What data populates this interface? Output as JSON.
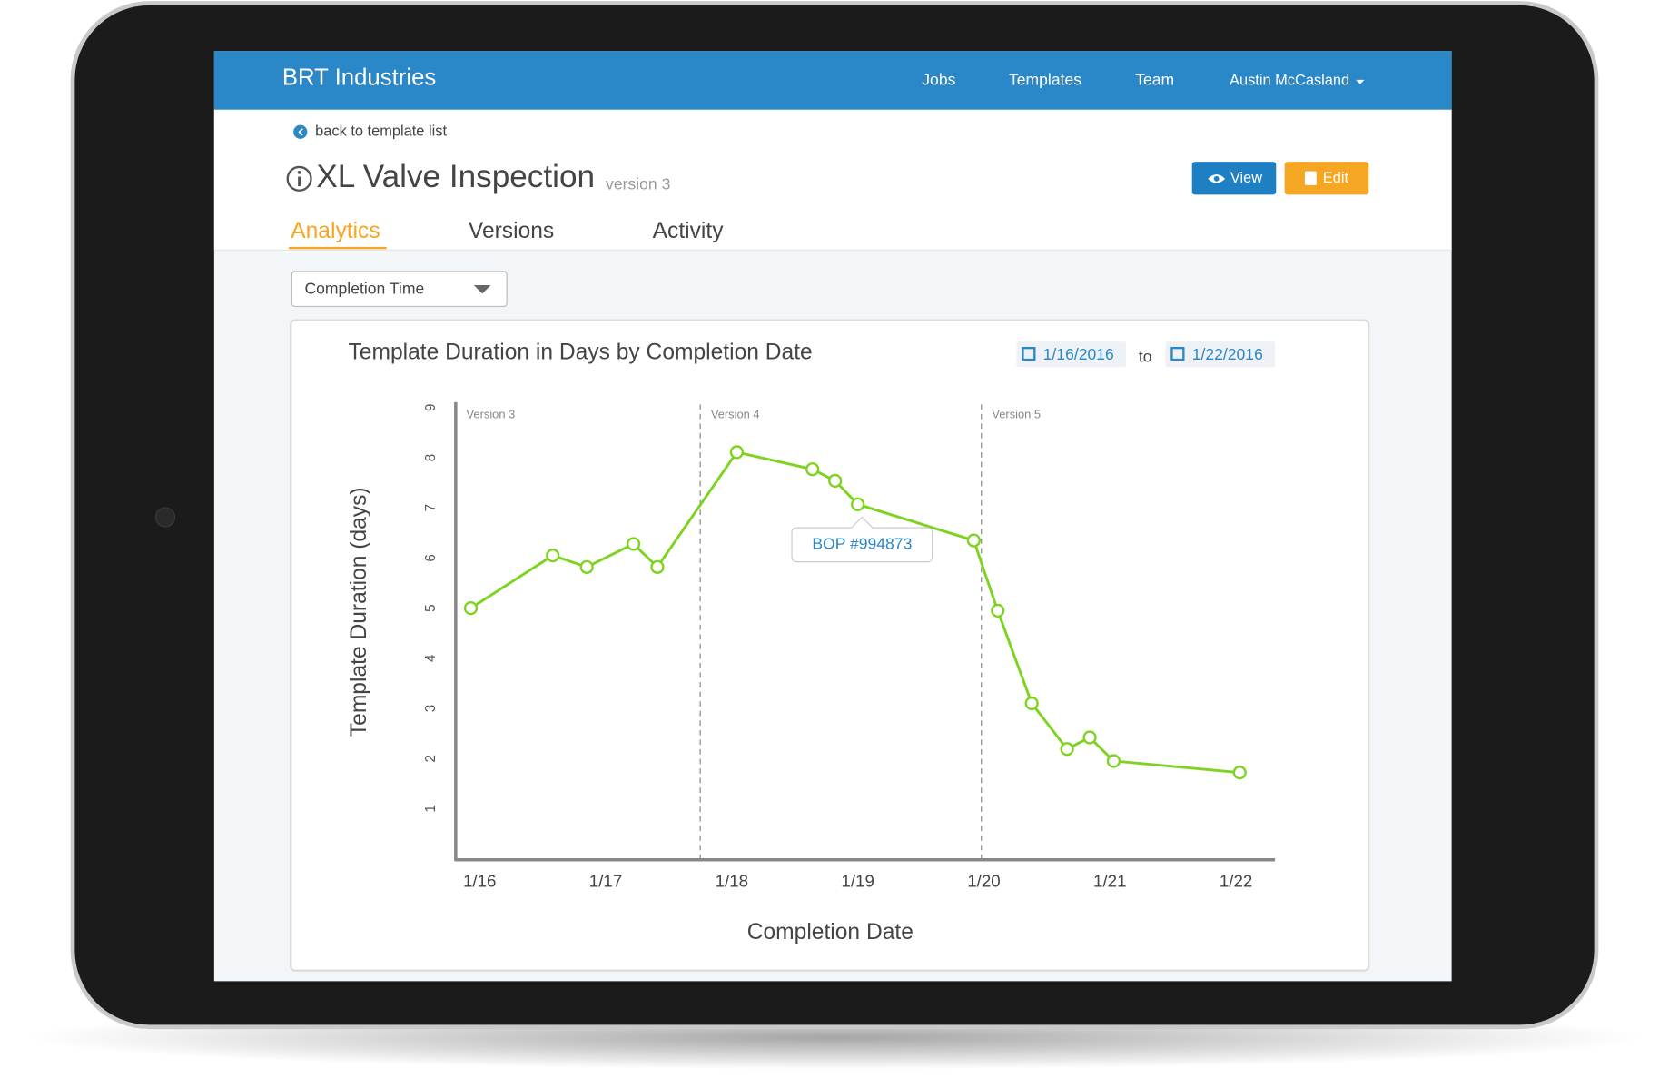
{
  "header": {
    "brand": "BRT Industries",
    "nav": [
      "Jobs",
      "Templates",
      "Team"
    ],
    "user": "Austin McCasland"
  },
  "page": {
    "back_link": "back to template list",
    "title": "XL Valve Inspection",
    "version": "version 3",
    "buttons": [
      "View",
      "Edit"
    ],
    "tabs": [
      "Analytics",
      "Versions",
      "Activity"
    ],
    "dropdown": "Completion Time"
  },
  "chart_data": {
    "type": "line",
    "title": "Template Duration in Days by Completion Date",
    "date_from": "1/16/2016",
    "range_separator": "to",
    "date_to": "1/22/2016",
    "x_label": "Completion Date",
    "y_label": "Template Duration (days)",
    "x": [
      15.93,
      16.58,
      16.85,
      17.22,
      17.41,
      18.04,
      18.64,
      18.82,
      19.0,
      19.92,
      20.11,
      20.38,
      20.66,
      20.84,
      21.03,
      22.03
    ],
    "values": [
      5.0,
      6.05,
      5.82,
      6.28,
      5.82,
      8.11,
      7.77,
      7.54,
      7.07,
      6.35,
      4.95,
      3.1,
      2.19,
      2.42,
      1.95,
      1.72
    ],
    "color": "#7ed321",
    "xlim": [
      15.81,
      22.31
    ],
    "ylim": [
      0,
      9
    ],
    "xticks": [
      {
        "value": 16,
        "label": "1/16"
      },
      {
        "value": 17,
        "label": "1/17"
      },
      {
        "value": 18,
        "label": "1/18"
      },
      {
        "value": 19,
        "label": "1/19"
      },
      {
        "value": 20,
        "label": "1/20"
      },
      {
        "value": 21,
        "label": "1/21"
      },
      {
        "value": 22,
        "label": "1/22"
      }
    ],
    "yticks": [
      1,
      2,
      3,
      4,
      5,
      6,
      7,
      8,
      9
    ],
    "version_lines": [
      {
        "x": 15.81,
        "label": "Version 3"
      },
      {
        "x": 17.75,
        "label": "Version 4"
      },
      {
        "x": 19.98,
        "label": "Version 5"
      }
    ],
    "tooltip": "BOP #994873"
  }
}
